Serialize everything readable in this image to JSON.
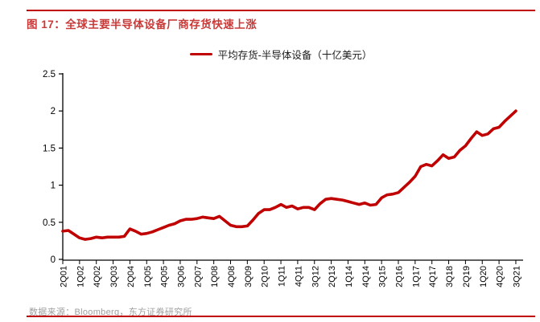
{
  "figure": {
    "title": "图 17：全球主要半导体设备厂商存货快速上涨",
    "source": "数据来源：Bloomberg，东方证券研究所"
  },
  "colors": {
    "title_red": "#c83a38",
    "rule_red": "#c00000",
    "line_red": "#c00000",
    "axis_black": "#000000",
    "source_gray": "#9e9e9e"
  },
  "chart_data": {
    "type": "line",
    "title": "",
    "xlabel": "",
    "ylabel": "",
    "legend": [
      "平均存货-半导体设备（十亿美元）"
    ],
    "legend_position": "top-center",
    "grid": false,
    "ylim": [
      0,
      2.5
    ],
    "y_ticks": [
      0,
      0.5,
      1,
      1.5,
      2,
      2.5
    ],
    "x_label_step": 3,
    "x_tick_labels_shown": [
      "2Q01",
      "1Q02",
      "4Q02",
      "3Q03",
      "2Q04",
      "1Q05",
      "4Q05",
      "3Q06",
      "2Q07",
      "1Q08",
      "4Q08",
      "3Q09",
      "2Q10",
      "1Q11",
      "4Q11",
      "3Q12",
      "2Q13",
      "1Q14",
      "4Q14",
      "3Q15",
      "2Q16",
      "1Q17",
      "4Q17",
      "3Q18",
      "2Q19",
      "1Q20",
      "4Q20",
      "3Q21"
    ],
    "quarters": [
      "2Q01",
      "3Q01",
      "4Q01",
      "1Q02",
      "2Q02",
      "3Q02",
      "4Q02",
      "1Q03",
      "2Q03",
      "3Q03",
      "4Q03",
      "1Q04",
      "2Q04",
      "3Q04",
      "4Q04",
      "1Q05",
      "2Q05",
      "3Q05",
      "4Q05",
      "1Q06",
      "2Q06",
      "3Q06",
      "4Q06",
      "1Q07",
      "2Q07",
      "3Q07",
      "4Q07",
      "1Q08",
      "2Q08",
      "3Q08",
      "4Q08",
      "1Q09",
      "2Q09",
      "3Q09",
      "4Q09",
      "1Q10",
      "2Q10",
      "3Q10",
      "4Q10",
      "1Q11",
      "2Q11",
      "3Q11",
      "4Q11",
      "1Q12",
      "2Q12",
      "3Q12",
      "4Q12",
      "1Q13",
      "2Q13",
      "3Q13",
      "4Q13",
      "1Q14",
      "2Q14",
      "3Q14",
      "4Q14",
      "1Q15",
      "2Q15",
      "3Q15",
      "4Q15",
      "1Q16",
      "2Q16",
      "3Q16",
      "4Q16",
      "1Q17",
      "2Q17",
      "3Q17",
      "4Q17",
      "1Q18",
      "2Q18",
      "3Q18",
      "4Q18",
      "1Q19",
      "2Q19",
      "3Q19",
      "4Q19",
      "1Q20",
      "2Q20",
      "3Q20",
      "4Q20",
      "1Q21",
      "2Q21",
      "3Q21"
    ],
    "series": [
      {
        "name": "平均存货-半导体设备（十亿美元）",
        "values": [
          0.38,
          0.39,
          0.34,
          0.29,
          0.27,
          0.28,
          0.3,
          0.29,
          0.3,
          0.3,
          0.3,
          0.31,
          0.41,
          0.38,
          0.34,
          0.35,
          0.37,
          0.4,
          0.43,
          0.46,
          0.48,
          0.52,
          0.54,
          0.54,
          0.55,
          0.57,
          0.56,
          0.55,
          0.58,
          0.52,
          0.46,
          0.44,
          0.44,
          0.45,
          0.53,
          0.62,
          0.67,
          0.67,
          0.7,
          0.74,
          0.7,
          0.72,
          0.68,
          0.7,
          0.7,
          0.67,
          0.75,
          0.81,
          0.82,
          0.81,
          0.8,
          0.78,
          0.76,
          0.74,
          0.76,
          0.73,
          0.74,
          0.83,
          0.87,
          0.88,
          0.9,
          0.97,
          1.04,
          1.12,
          1.25,
          1.28,
          1.26,
          1.33,
          1.41,
          1.36,
          1.38,
          1.47,
          1.53,
          1.63,
          1.72,
          1.67,
          1.69,
          1.76,
          1.78,
          1.86,
          1.93,
          2.0
        ]
      }
    ]
  }
}
